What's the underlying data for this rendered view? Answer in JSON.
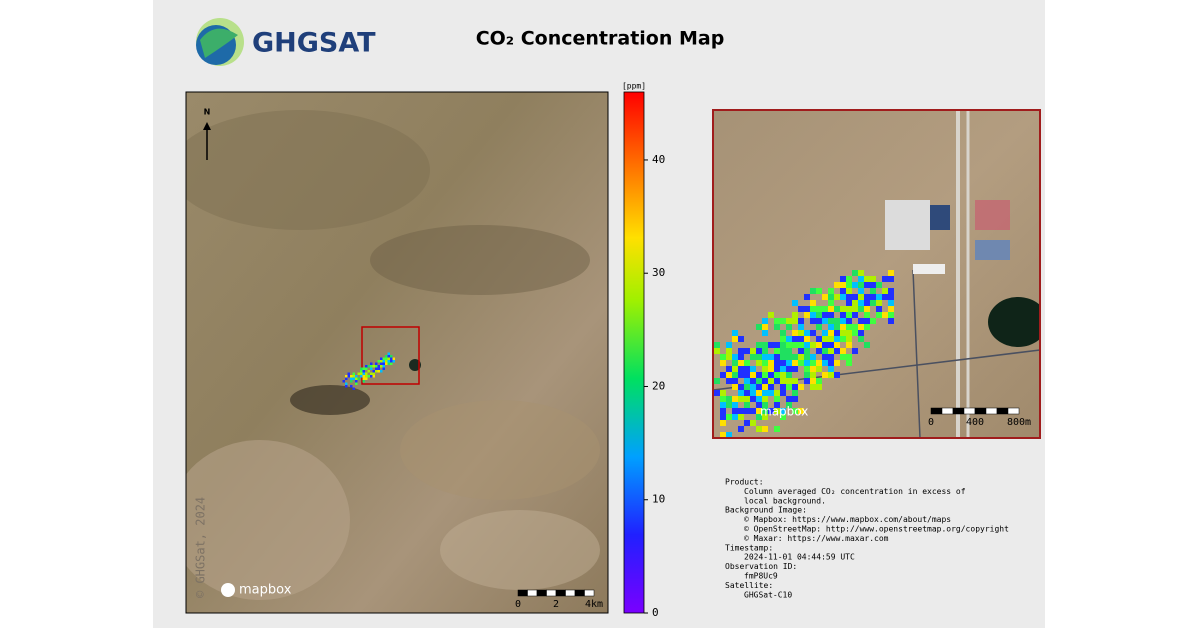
{
  "header": {
    "logo": "GHGSAT",
    "trademark": "™",
    "title": "CO₂ Concentration Map"
  },
  "main_map": {
    "north": "N",
    "watermark": "© GHGSat, 2024",
    "attribution": "mapbox",
    "scale_labels": [
      "0",
      "2",
      "4km"
    ]
  },
  "colorbar": {
    "label": "[ppm]",
    "lim": [
      0,
      46
    ],
    "ticks": [
      0,
      10,
      20,
      30,
      40
    ]
  },
  "inset_map": {
    "attribution": "mapbox",
    "scale_labels": [
      "0",
      "400",
      "800m"
    ]
  },
  "info": [
    {
      "label": "Product:",
      "values": [
        "Column averaged CO₂ concentration in excess of",
        "local background."
      ]
    },
    {
      "label": "Background Image:",
      "values": [
        "© Mapbox: https://www.mapbox.com/about/maps",
        "© OpenStreetMap: http://www.openstreetmap.org/copyright",
        "© Maxar: https://www.maxar.com"
      ]
    },
    {
      "label": "Timestamp:",
      "values": [
        "2024-11-01 04:44:59 UTC"
      ]
    },
    {
      "label": "Observation ID:",
      "values": [
        "fmP8Uc9"
      ]
    },
    {
      "label": "Satellite:",
      "values": [
        "GHGSat-C10"
      ]
    }
  ]
}
